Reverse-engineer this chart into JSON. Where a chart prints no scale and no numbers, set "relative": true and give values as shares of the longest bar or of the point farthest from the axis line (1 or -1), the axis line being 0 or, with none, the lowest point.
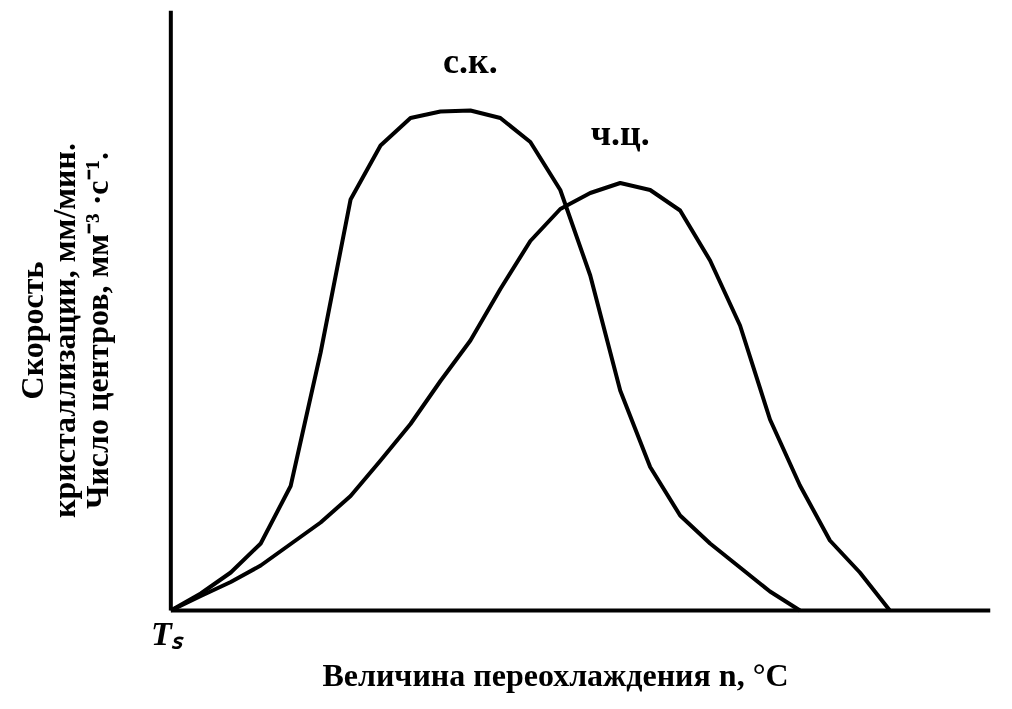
{
  "chart_data": {
    "type": "line",
    "relative": true,
    "xlabel": "Величина переохлаждения n, °C",
    "ylabel": "Скорость\nкристаллизации, мм/мин.\nЧисло центров, мм⁻³ ·с⁻¹.",
    "annotations": [
      "Tₛ"
    ],
    "marker": "none",
    "line_style": "solid",
    "categories": [
      null,
      null,
      null,
      null,
      null,
      null,
      null,
      null,
      null,
      null,
      null,
      null,
      null,
      null,
      null,
      null,
      null,
      null,
      null,
      null,
      null,
      null,
      null,
      null,
      null
    ],
    "series": [
      {
        "name": "с.к.",
        "color": "#000000",
        "values": [
          0,
          0.034,
          0.076,
          0.134,
          0.249,
          0.516,
          0.822,
          0.93,
          0.985,
          0.998,
          1,
          0.985,
          0.937,
          0.841,
          0.67,
          0.44,
          0.287,
          0.19,
          0.134,
          0.086,
          0.038,
          0,
          null,
          null,
          null
        ]
      },
      {
        "name": "ч.ц.",
        "color": "#000000",
        "values": [
          0,
          0.029,
          0.057,
          0.09,
          0.133,
          0.176,
          0.229,
          0.3,
          0.373,
          0.459,
          0.54,
          0.643,
          0.739,
          0.803,
          0.835,
          0.855,
          0.841,
          0.8,
          0.7,
          0.57,
          0.382,
          0.25,
          0.14,
          0.076,
          0
        ]
      }
    ]
  }
}
